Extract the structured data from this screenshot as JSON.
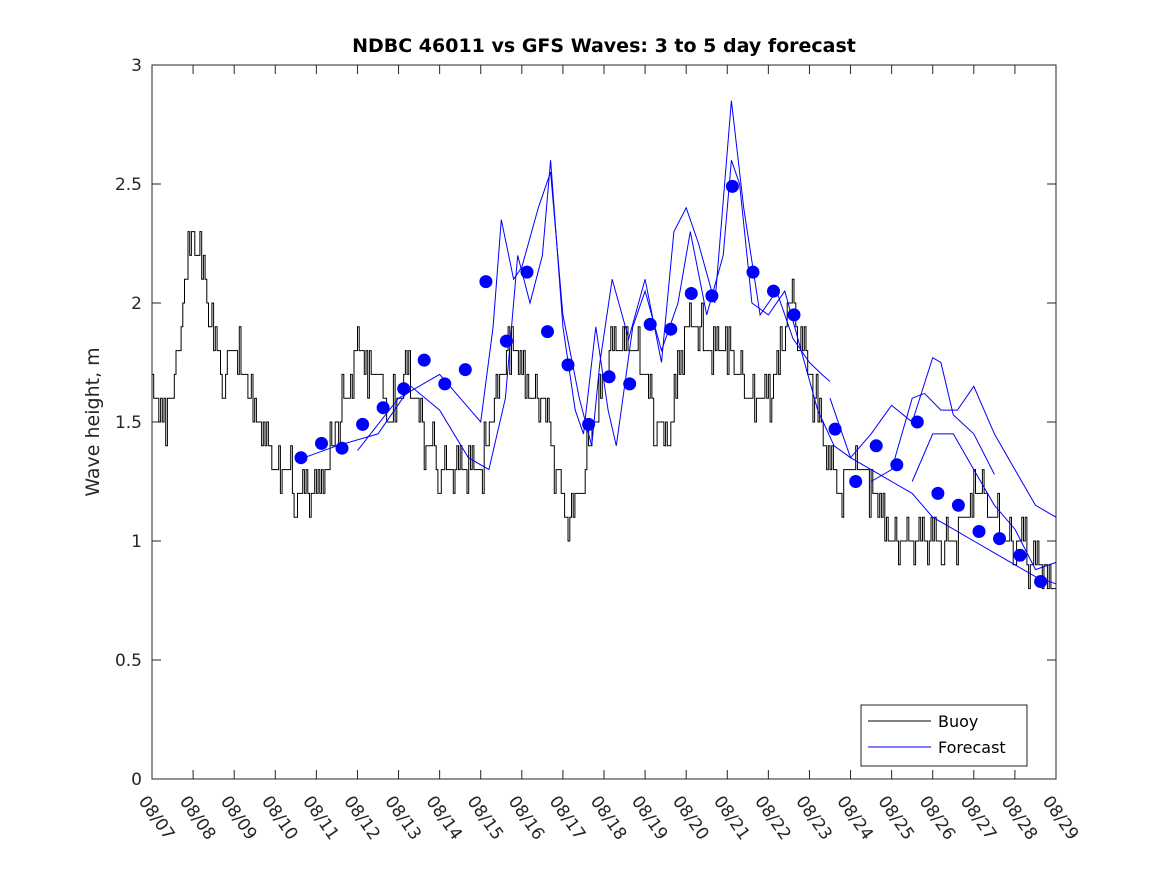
{
  "chart_data": {
    "type": "line",
    "title": "NDBC 46011 vs GFS Waves: 3 to 5 day forecast",
    "xlabel": "",
    "ylabel": "Wave height, m",
    "xlim_days": [
      0,
      22
    ],
    "ylim": [
      0,
      3
    ],
    "x_tick_labels": [
      "08/07",
      "08/08",
      "08/09",
      "08/10",
      "08/11",
      "08/12",
      "08/13",
      "08/14",
      "08/15",
      "08/16",
      "08/17",
      "08/18",
      "08/19",
      "08/20",
      "08/21",
      "08/22",
      "08/23",
      "08/24",
      "08/25",
      "08/26",
      "08/27",
      "08/28",
      "08/29"
    ],
    "y_ticks": [
      0,
      0.5,
      1,
      1.5,
      2,
      2.5,
      3
    ],
    "y_tick_labels": [
      "0",
      "0.5",
      "1",
      "1.5",
      "2",
      "2.5",
      "3"
    ],
    "legend": {
      "placement": "bottom-right",
      "entries": [
        "Buoy",
        "Forecast"
      ]
    },
    "colors": {
      "buoy": "#000000",
      "forecast": "#0000ff"
    },
    "buoy": {
      "step_days": 0.25,
      "values": [
        1.6,
        1.5,
        1.6,
        2.0,
        2.3,
        2.1,
        1.8,
        1.7,
        1.8,
        1.7,
        1.5,
        1.4,
        1.3,
        1.3,
        1.2,
        1.2,
        1.2,
        1.3,
        1.5,
        1.6,
        1.8,
        1.7,
        1.7,
        1.5,
        1.6,
        1.7,
        1.5,
        1.4,
        1.3,
        1.3,
        1.3,
        1.3,
        1.3,
        1.5,
        1.7,
        1.8,
        1.7,
        1.6,
        1.6,
        1.4,
        1.1,
        1.1,
        1.3,
        1.5,
        1.7,
        1.8,
        1.8,
        1.8,
        1.7,
        1.5,
        1.4,
        1.6,
        1.9,
        1.9,
        1.8,
        1.8,
        1.8,
        1.7,
        1.6,
        1.6,
        1.6,
        1.7,
        2.0,
        1.9,
        1.7,
        1.5,
        1.3,
        1.2,
        1.3,
        1.3,
        1.2,
        1.1,
        1.0,
        0.95,
        0.95,
        0.95,
        0.95,
        0.95,
        0.95,
        1.1,
        1.15,
        1.15,
        1.1,
        1.0,
        0.95,
        0.95,
        0.9,
        0.85,
        0.8
      ]
    },
    "forecast_runs": [
      [
        [
          3.7,
          1.35
        ],
        [
          4.5,
          1.4
        ],
        [
          5.5,
          1.45
        ],
        [
          6.3,
          1.65
        ],
        [
          7,
          1.55
        ],
        [
          7.7,
          1.35
        ],
        [
          8.2,
          1.3
        ],
        [
          8.6,
          1.6
        ],
        [
          8.9,
          2.2
        ],
        [
          9.2,
          2.0
        ],
        [
          9.5,
          2.2
        ],
        [
          9.7,
          2.6
        ],
        [
          10.0,
          1.9
        ],
        [
          10.3,
          1.55
        ],
        [
          10.5,
          1.45
        ],
        [
          10.8,
          1.9
        ],
        [
          11.1,
          1.55
        ],
        [
          11.3,
          1.4
        ],
        [
          11.7,
          1.9
        ],
        [
          12.0,
          2.05
        ],
        [
          12.4,
          1.8
        ],
        [
          12.8,
          2.0
        ],
        [
          13.1,
          2.3
        ],
        [
          13.5,
          1.95
        ],
        [
          13.9,
          2.2
        ],
        [
          14.1,
          2.6
        ],
        [
          14.3,
          2.5
        ],
        [
          14.6,
          2.0
        ],
        [
          15.0,
          1.95
        ],
        [
          15.4,
          2.05
        ],
        [
          15.8,
          1.8
        ],
        [
          16.2,
          1.55
        ],
        [
          16.6,
          1.4
        ],
        [
          17.0,
          1.35
        ],
        [
          17.5,
          1.3
        ],
        [
          18.0,
          1.25
        ],
        [
          18.5,
          1.2
        ],
        [
          19.0,
          1.1
        ],
        [
          19.5,
          1.05
        ],
        [
          20.0,
          1.0
        ],
        [
          20.5,
          0.95
        ],
        [
          21.0,
          0.9
        ],
        [
          21.5,
          0.85
        ],
        [
          22.0,
          0.82
        ]
      ],
      [
        [
          5,
          1.38
        ],
        [
          6,
          1.6
        ],
        [
          7,
          1.7
        ],
        [
          7.5,
          1.6
        ],
        [
          8.0,
          1.5
        ],
        [
          8.3,
          1.9
        ],
        [
          8.5,
          2.35
        ],
        [
          8.8,
          2.1
        ],
        [
          9.0,
          2.15
        ],
        [
          9.4,
          2.4
        ],
        [
          9.7,
          2.55
        ],
        [
          10.0,
          1.95
        ],
        [
          10.4,
          1.6
        ],
        [
          10.7,
          1.4
        ],
        [
          10.9,
          1.75
        ],
        [
          11.2,
          2.1
        ],
        [
          11.6,
          1.85
        ],
        [
          12.0,
          2.1
        ],
        [
          12.4,
          1.75
        ],
        [
          12.7,
          2.3
        ],
        [
          13.0,
          2.4
        ],
        [
          13.3,
          2.25
        ],
        [
          13.7,
          2.0
        ],
        [
          14.1,
          2.85
        ],
        [
          14.4,
          2.4
        ],
        [
          14.8,
          1.95
        ],
        [
          15.2,
          2.05
        ],
        [
          15.6,
          1.85
        ],
        [
          16.0,
          1.75
        ],
        [
          16.3,
          1.7
        ],
        [
          16.5,
          1.67
        ]
      ],
      [
        [
          16.5,
          1.6
        ],
        [
          17.0,
          1.35
        ],
        [
          17.5,
          1.45
        ],
        [
          18.0,
          1.57
        ],
        [
          18.5,
          1.5
        ],
        [
          19.0,
          1.77
        ],
        [
          19.2,
          1.75
        ],
        [
          19.5,
          1.53
        ],
        [
          20.0,
          1.45
        ],
        [
          20.5,
          1.28
        ]
      ],
      [
        [
          17.5,
          1.25
        ],
        [
          18.0,
          1.3
        ],
        [
          18.5,
          1.6
        ],
        [
          18.8,
          1.62
        ],
        [
          19.2,
          1.55
        ],
        [
          19.6,
          1.55
        ],
        [
          20.0,
          1.65
        ],
        [
          20.5,
          1.45
        ],
        [
          21.0,
          1.3
        ],
        [
          21.5,
          1.15
        ],
        [
          22.0,
          1.1
        ]
      ],
      [
        [
          18.5,
          1.25
        ],
        [
          19.0,
          1.45
        ],
        [
          19.5,
          1.45
        ],
        [
          20.0,
          1.3
        ],
        [
          20.5,
          1.15
        ],
        [
          21.0,
          1.05
        ],
        [
          21.5,
          0.88
        ],
        [
          22.0,
          0.91
        ]
      ]
    ],
    "forecast_points": [
      [
        3.625,
        1.35
      ],
      [
        4.125,
        1.41
      ],
      [
        4.625,
        1.39
      ],
      [
        5.125,
        1.49
      ],
      [
        5.625,
        1.56
      ],
      [
        6.125,
        1.64
      ],
      [
        6.625,
        1.76
      ],
      [
        7.125,
        1.66
      ],
      [
        7.625,
        1.72
      ],
      [
        8.125,
        2.09
      ],
      [
        8.625,
        1.84
      ],
      [
        9.125,
        2.13
      ],
      [
        9.625,
        1.88
      ],
      [
        10.125,
        1.74
      ],
      [
        10.625,
        1.49
      ],
      [
        11.125,
        1.69
      ],
      [
        11.625,
        1.66
      ],
      [
        12.125,
        1.91
      ],
      [
        12.625,
        1.89
      ],
      [
        13.125,
        2.04
      ],
      [
        13.625,
        2.03
      ],
      [
        14.125,
        2.49
      ],
      [
        14.625,
        2.13
      ],
      [
        15.125,
        2.05
      ],
      [
        15.625,
        1.95
      ],
      [
        16.625,
        1.47
      ],
      [
        17.125,
        1.25
      ],
      [
        17.625,
        1.4
      ],
      [
        18.125,
        1.32
      ],
      [
        18.625,
        1.5
      ],
      [
        19.125,
        1.2
      ],
      [
        19.625,
        1.15
      ],
      [
        20.125,
        1.04
      ],
      [
        20.625,
        1.01
      ],
      [
        21.125,
        0.94
      ],
      [
        21.625,
        0.83
      ]
    ]
  }
}
